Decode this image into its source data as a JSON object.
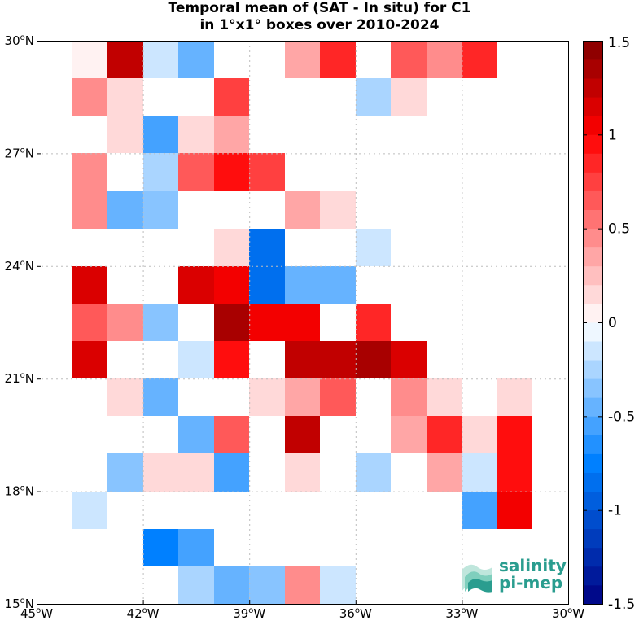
{
  "title_lines": [
    "Temporal mean of (SAT - In situ) for C1",
    "in 1°x1° boxes over 2010-2024"
  ],
  "logo": {
    "line1": "salinity",
    "line2": "pi-mep",
    "icon": "wave-stack-icon",
    "color": "#2a9d8f"
  },
  "chart_data": {
    "type": "heatmap",
    "title": "Temporal mean of (SAT - In situ) for C1 in 1°x1° boxes over 2010-2024",
    "x_range_lon": [
      -45,
      -30
    ],
    "y_range_lat": [
      15,
      30
    ],
    "x_ticks": [
      {
        "value": -45,
        "deg": "45",
        "hemi": "W"
      },
      {
        "value": -42,
        "deg": "42",
        "hemi": "W"
      },
      {
        "value": -39,
        "deg": "39",
        "hemi": "W"
      },
      {
        "value": -36,
        "deg": "36",
        "hemi": "W"
      },
      {
        "value": -33,
        "deg": "33",
        "hemi": "W"
      },
      {
        "value": -30,
        "deg": "30",
        "hemi": "W"
      }
    ],
    "y_ticks": [
      {
        "value": 30,
        "deg": "30",
        "hemi": "N"
      },
      {
        "value": 27,
        "deg": "27",
        "hemi": "N"
      },
      {
        "value": 24,
        "deg": "24",
        "hemi": "N"
      },
      {
        "value": 21,
        "deg": "21",
        "hemi": "N"
      },
      {
        "value": 18,
        "deg": "18",
        "hemi": "N"
      },
      {
        "value": 15,
        "deg": "15",
        "hemi": "N"
      }
    ],
    "grid": "dotted",
    "colorbar": {
      "range": [
        -1.5,
        1.5
      ],
      "levels": 30,
      "ticks": [
        {
          "value": 1.5,
          "label": "1.5"
        },
        {
          "value": 1,
          "label": "1"
        },
        {
          "value": 0.5,
          "label": "0.5"
        },
        {
          "value": 0,
          "label": "0"
        },
        {
          "value": -0.5,
          "label": "-0.5"
        },
        {
          "value": -1,
          "label": "-1"
        },
        {
          "value": -1.5,
          "label": "-1.5"
        }
      ],
      "colormap": "blue-white-red",
      "placement": "right"
    },
    "cells_lon_lat_value": [
      [
        -44,
        29,
        0.05
      ],
      [
        -43,
        29,
        1.25
      ],
      [
        -42,
        29,
        -0.15
      ],
      [
        -41,
        29,
        -0.45
      ],
      [
        -38,
        29,
        0.35
      ],
      [
        -37,
        29,
        0.85
      ],
      [
        -35,
        29,
        0.65
      ],
      [
        -34,
        29,
        0.45
      ],
      [
        -33,
        29,
        0.85
      ],
      [
        -44,
        28,
        0.45
      ],
      [
        -43,
        28,
        0.15
      ],
      [
        -40,
        28,
        0.75
      ],
      [
        -36,
        28,
        -0.25
      ],
      [
        -35,
        28,
        0.15
      ],
      [
        -43,
        27,
        0.15
      ],
      [
        -42,
        27,
        -0.55
      ],
      [
        -41,
        27,
        0.15
      ],
      [
        -40,
        27,
        0.3
      ],
      [
        -44,
        26,
        0.45
      ],
      [
        -42,
        26,
        -0.25
      ],
      [
        -41,
        26,
        0.6
      ],
      [
        -40,
        26,
        0.95
      ],
      [
        -39,
        26,
        0.75
      ],
      [
        -44,
        25,
        0.45
      ],
      [
        -43,
        25,
        -0.45
      ],
      [
        -42,
        25,
        -0.35
      ],
      [
        -38,
        25,
        0.3
      ],
      [
        -37,
        25,
        0.15
      ],
      [
        -40,
        24,
        0.15
      ],
      [
        -39,
        24,
        -0.85
      ],
      [
        -36,
        24,
        -0.15
      ],
      [
        -44,
        23,
        1.15
      ],
      [
        -41,
        23,
        1.1
      ],
      [
        -40,
        23,
        1.0
      ],
      [
        -39,
        23,
        -0.85
      ],
      [
        -38,
        23,
        -0.45
      ],
      [
        -37,
        23,
        -0.45
      ],
      [
        -44,
        22,
        0.65
      ],
      [
        -43,
        22,
        0.45
      ],
      [
        -42,
        22,
        -0.35
      ],
      [
        -40,
        22,
        1.35
      ],
      [
        -39,
        22,
        1.0
      ],
      [
        -38,
        22,
        1.0
      ],
      [
        -36,
        22,
        0.85
      ],
      [
        -44,
        21,
        1.1
      ],
      [
        -41,
        21,
        -0.15
      ],
      [
        -40,
        21,
        0.95
      ],
      [
        -38,
        21,
        1.3
      ],
      [
        -37,
        21,
        1.3
      ],
      [
        -36,
        21,
        1.4
      ],
      [
        -35,
        21,
        1.1
      ],
      [
        -43,
        20,
        0.15
      ],
      [
        -42,
        20,
        -0.45
      ],
      [
        -39,
        20,
        0.15
      ],
      [
        -38,
        20,
        0.3
      ],
      [
        -37,
        20,
        0.6
      ],
      [
        -35,
        20,
        0.45
      ],
      [
        -34,
        20,
        0.15
      ],
      [
        -32,
        20,
        0.15
      ],
      [
        -41,
        19,
        -0.45
      ],
      [
        -40,
        19,
        0.6
      ],
      [
        -38,
        19,
        1.2
      ],
      [
        -35,
        19,
        0.3
      ],
      [
        -34,
        19,
        0.85
      ],
      [
        -33,
        19,
        0.15
      ],
      [
        -32,
        19,
        0.95
      ],
      [
        -43,
        18,
        -0.35
      ],
      [
        -42,
        18,
        0.15
      ],
      [
        -41,
        18,
        0.15
      ],
      [
        -40,
        18,
        -0.55
      ],
      [
        -38,
        18,
        0.15
      ],
      [
        -36,
        18,
        -0.25
      ],
      [
        -34,
        18,
        0.3
      ],
      [
        -33,
        18,
        -0.15
      ],
      [
        -32,
        18,
        0.95
      ],
      [
        -44,
        17,
        -0.15
      ],
      [
        -33,
        17,
        -0.55
      ],
      [
        -32,
        17,
        1.05
      ],
      [
        -42,
        16,
        -0.75
      ],
      [
        -41,
        16,
        -0.55
      ],
      [
        -41,
        15,
        -0.25
      ],
      [
        -40,
        15,
        -0.45
      ],
      [
        -39,
        15,
        -0.35
      ],
      [
        -38,
        15,
        0.45
      ],
      [
        -37,
        15,
        -0.15
      ]
    ]
  }
}
